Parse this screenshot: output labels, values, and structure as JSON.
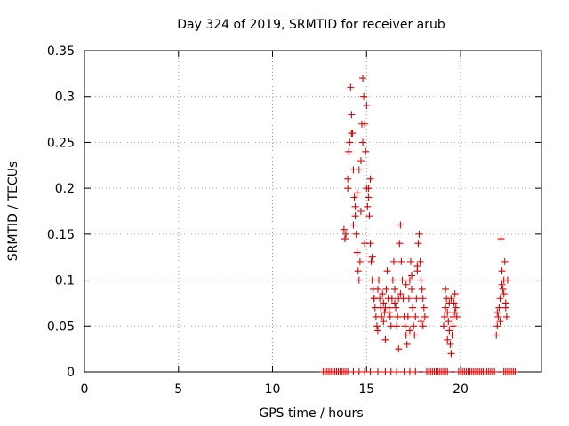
{
  "chart_data": {
    "type": "scatter",
    "title": "Day 324 of 2019, SRMTID for receiver arub",
    "xlabel": "GPS time / hours",
    "ylabel": "SRMTID / TECUs",
    "xlim": [
      0,
      24.3
    ],
    "ylim": [
      0,
      0.35
    ],
    "x_ticks": [
      0,
      5,
      10,
      15,
      20
    ],
    "y_ticks": [
      0,
      0.05,
      0.1,
      0.15,
      0.2,
      0.25,
      0.3,
      0.35
    ],
    "x_tick_labels": [
      "0",
      "5",
      "10",
      "15",
      "20"
    ],
    "y_tick_labels": [
      "0",
      "0.05",
      "0.1",
      "0.15",
      "0.2",
      "0.25",
      "0.3",
      "0.35"
    ],
    "grid": true,
    "marker": "plus",
    "marker_color": "#e00000",
    "series": [
      {
        "name": "SRMTID",
        "x": [
          13.9,
          14.0,
          14.05,
          14.1,
          14.15,
          14.2,
          14.25,
          14.3,
          14.35,
          14.4,
          14.45,
          14.5,
          14.55,
          14.6,
          14.65,
          14.7,
          14.75,
          14.8,
          14.85,
          14.9,
          14.95,
          15.0,
          15.05,
          15.1,
          15.15,
          15.2,
          15.25,
          15.3,
          15.35,
          15.4,
          14.0,
          14.2,
          14.4,
          14.6,
          14.8,
          15.0,
          15.2,
          13.8,
          13.85,
          14.3,
          14.5,
          14.7,
          14.9,
          15.1,
          15.3,
          15.4,
          15.45,
          15.5,
          15.55,
          15.6,
          15.65,
          15.7,
          15.75,
          15.8,
          15.85,
          15.9,
          15.95,
          16.0,
          16.05,
          16.1,
          16.15,
          16.2,
          16.25,
          16.3,
          16.35,
          16.4,
          16.45,
          16.5,
          16.55,
          16.6,
          16.65,
          16.7,
          16.75,
          16.8,
          16.85,
          16.9,
          16.95,
          17.0,
          17.05,
          17.1,
          17.15,
          17.2,
          17.25,
          17.3,
          17.35,
          17.4,
          17.45,
          17.5,
          17.55,
          17.6,
          17.65,
          17.7,
          17.75,
          17.8,
          17.85,
          17.9,
          17.95,
          18.0,
          18.05,
          18.1,
          15.6,
          15.9,
          16.2,
          16.5,
          16.8,
          17.1,
          17.4,
          17.7,
          18.0,
          16.0,
          16.7,
          17.3,
          17.9,
          19.1,
          19.15,
          19.2,
          19.25,
          19.3,
          19.35,
          19.4,
          19.45,
          19.5,
          19.55,
          19.6,
          19.65,
          19.7,
          19.75,
          19.8,
          19.2,
          19.4,
          19.6,
          19.3,
          19.5,
          19.7,
          21.9,
          21.95,
          22.0,
          22.05,
          22.1,
          22.15,
          22.2,
          22.25,
          22.3,
          22.35,
          22.4,
          22.45,
          22.5,
          21.95,
          22.1,
          22.3,
          22.2,
          22.4,
          12.7,
          12.8,
          12.9,
          13.0,
          13.1,
          13.2,
          13.3,
          13.4,
          13.5,
          13.6,
          13.7,
          13.8,
          13.9,
          14.0,
          14.3,
          14.6,
          14.9,
          15.2,
          15.6,
          16.0,
          16.3,
          16.6,
          17.0,
          17.3,
          17.6,
          18.2,
          18.3,
          18.4,
          18.5,
          18.6,
          18.7,
          18.8,
          18.9,
          19.0,
          19.1,
          19.2,
          19.3,
          19.9,
          20.0,
          20.1,
          20.2,
          20.3,
          20.4,
          20.5,
          20.6,
          20.7,
          20.8,
          20.9,
          21.0,
          21.1,
          21.2,
          21.3,
          21.4,
          21.5,
          21.6,
          21.7,
          21.8,
          22.3,
          22.4,
          22.5,
          22.6,
          22.7,
          22.8,
          22.9
        ],
        "y": [
          0.15,
          0.21,
          0.24,
          0.25,
          0.31,
          0.28,
          0.26,
          0.22,
          0.19,
          0.17,
          0.15,
          0.13,
          0.11,
          0.1,
          0.12,
          0.23,
          0.27,
          0.32,
          0.3,
          0.27,
          0.24,
          0.2,
          0.18,
          0.19,
          0.17,
          0.14,
          0.12,
          0.1,
          0.09,
          0.08,
          0.2,
          0.26,
          0.18,
          0.22,
          0.25,
          0.29,
          0.21,
          0.155,
          0.145,
          0.16,
          0.195,
          0.175,
          0.14,
          0.2,
          0.125,
          0.08,
          0.07,
          0.06,
          0.05,
          0.09,
          0.1,
          0.08,
          0.07,
          0.06,
          0.085,
          0.075,
          0.065,
          0.07,
          0.09,
          0.11,
          0.08,
          0.07,
          0.06,
          0.05,
          0.08,
          0.1,
          0.12,
          0.09,
          0.07,
          0.05,
          0.06,
          0.08,
          0.14,
          0.16,
          0.12,
          0.1,
          0.08,
          0.06,
          0.05,
          0.04,
          0.03,
          0.06,
          0.08,
          0.1,
          0.12,
          0.09,
          0.07,
          0.05,
          0.04,
          0.06,
          0.08,
          0.11,
          0.14,
          0.15,
          0.12,
          0.1,
          0.09,
          0.08,
          0.07,
          0.06,
          0.045,
          0.055,
          0.065,
          0.075,
          0.085,
          0.095,
          0.105,
          0.115,
          0.05,
          0.035,
          0.025,
          0.045,
          0.055,
          0.05,
          0.06,
          0.07,
          0.08,
          0.065,
          0.055,
          0.045,
          0.03,
          0.02,
          0.04,
          0.06,
          0.075,
          0.085,
          0.07,
          0.06,
          0.09,
          0.075,
          0.05,
          0.035,
          0.08,
          0.065,
          0.04,
          0.05,
          0.06,
          0.07,
          0.08,
          0.145,
          0.11,
          0.09,
          0.1,
          0.12,
          0.07,
          0.06,
          0.1,
          0.065,
          0.055,
          0.085,
          0.095,
          0.075,
          0,
          0,
          0,
          0,
          0,
          0,
          0,
          0,
          0,
          0,
          0,
          0,
          0,
          0,
          0,
          0,
          0,
          0,
          0,
          0,
          0,
          0,
          0,
          0,
          0,
          0,
          0,
          0,
          0,
          0,
          0,
          0,
          0,
          0,
          0,
          0,
          0,
          0,
          0,
          0,
          0,
          0,
          0,
          0,
          0,
          0,
          0,
          0,
          0,
          0,
          0,
          0,
          0,
          0,
          0,
          0,
          0,
          0,
          0,
          0,
          0,
          0,
          0,
          0
        ]
      }
    ]
  }
}
